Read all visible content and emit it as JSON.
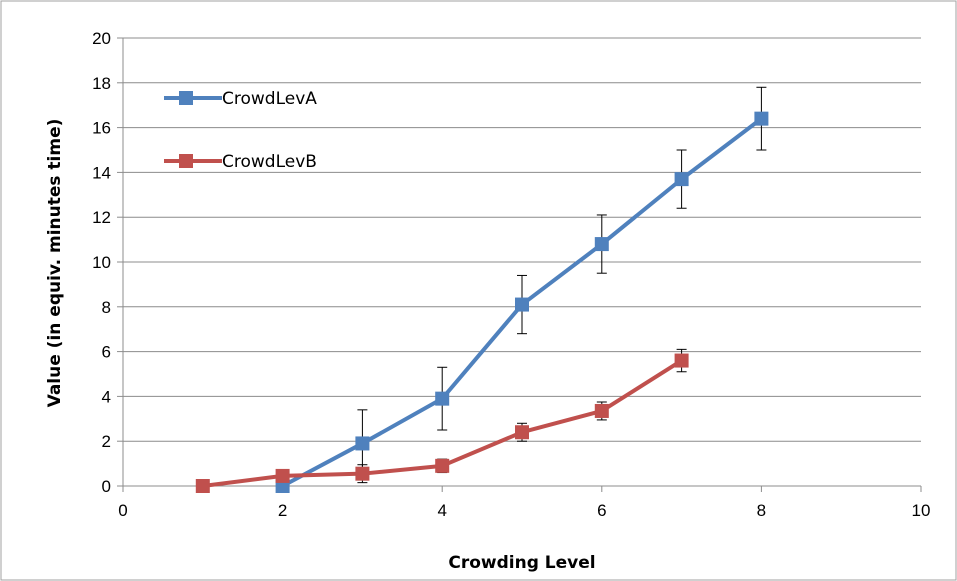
{
  "chart_data": {
    "type": "line",
    "title": "",
    "xlabel": "Crowding Level",
    "ylabel": "Value (in equiv. minutes time)",
    "xlim": [
      0,
      10
    ],
    "ylim": [
      0,
      20
    ],
    "xticks": [
      0,
      2,
      4,
      6,
      8,
      10
    ],
    "yticks": [
      0,
      2,
      4,
      6,
      8,
      10,
      12,
      14,
      16,
      18,
      20
    ],
    "grid": "horizontal",
    "legend_position": "top-left",
    "series": [
      {
        "name": "CrowdLevA",
        "color": "#4F81BD",
        "marker": "square",
        "points": [
          {
            "x": 2,
            "y": 0.0,
            "err": 0.0
          },
          {
            "x": 3,
            "y": 1.9,
            "err": 1.5
          },
          {
            "x": 4,
            "y": 3.9,
            "err": 1.4
          },
          {
            "x": 5,
            "y": 8.1,
            "err": 1.3
          },
          {
            "x": 6,
            "y": 10.8,
            "err": 1.3
          },
          {
            "x": 7,
            "y": 13.7,
            "err": 1.3
          },
          {
            "x": 8,
            "y": 16.4,
            "err": 1.4
          }
        ]
      },
      {
        "name": "CrowdLevB",
        "color": "#C0504D",
        "marker": "square",
        "points": [
          {
            "x": 1,
            "y": 0.0,
            "err": 0.0
          },
          {
            "x": 2,
            "y": 0.45,
            "err": 0.0
          },
          {
            "x": 3,
            "y": 0.55,
            "err": 0.4
          },
          {
            "x": 4,
            "y": 0.9,
            "err": 0.3
          },
          {
            "x": 5,
            "y": 2.4,
            "err": 0.4
          },
          {
            "x": 6,
            "y": 3.35,
            "err": 0.4
          },
          {
            "x": 7,
            "y": 5.6,
            "err": 0.5
          }
        ]
      }
    ]
  }
}
